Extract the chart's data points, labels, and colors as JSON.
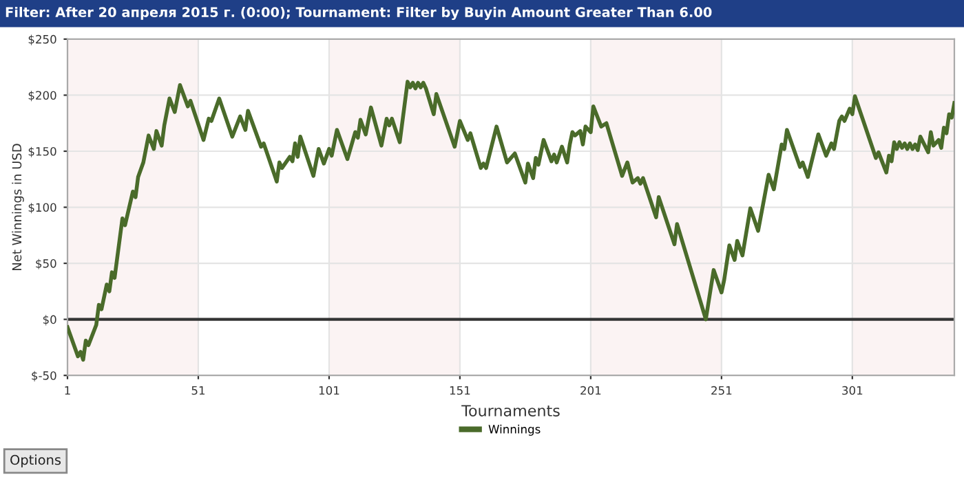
{
  "chart_data": {
    "type": "line",
    "title": "Filter: After 20 апреля 2015 г. (0:00); Tournament: Filter by Buyin Amount Greater Than 6.00",
    "xlabel": "Tournaments",
    "ylabel": "Net Winnings in USD",
    "xlim": [
      1,
      340
    ],
    "xticks": [
      1,
      51,
      101,
      151,
      201,
      251,
      301
    ],
    "ylim": [
      -50,
      250
    ],
    "yticks": [
      {
        "value": -50,
        "label": "$-50"
      },
      {
        "value": 0,
        "label": "$0"
      },
      {
        "value": 50,
        "label": "$50"
      },
      {
        "value": 100,
        "label": "$100"
      },
      {
        "value": 150,
        "label": "$150"
      },
      {
        "value": 200,
        "label": "$200"
      },
      {
        "value": 250,
        "label": "$250"
      }
    ],
    "grid": true,
    "legend": "bottom",
    "marker": "none",
    "line_style": "solid",
    "ref_lines": [
      {
        "axis": "y",
        "value": 0,
        "label": null,
        "color": "#333333"
      }
    ],
    "bands": [
      {
        "axis": "x",
        "from": 1,
        "to": 51,
        "label": null,
        "color": "#fbf3f3"
      },
      {
        "axis": "x",
        "from": 101,
        "to": 151,
        "label": null,
        "color": "#fbf3f3"
      },
      {
        "axis": "x",
        "from": 201,
        "to": 251,
        "label": null,
        "color": "#fbf3f3"
      },
      {
        "axis": "x",
        "from": 301,
        "to": 340,
        "label": null,
        "color": "#fbf3f3"
      }
    ],
    "annotations": [
      "Options"
    ],
    "series": [
      {
        "name": "Winnings",
        "color": "#4a6b2a",
        "x": [
          1,
          5,
          6,
          7,
          8,
          9,
          12,
          13,
          14,
          16,
          17,
          18,
          19,
          22,
          23,
          26,
          27,
          28,
          30,
          32,
          34,
          35,
          37,
          38,
          40,
          42,
          44,
          47,
          48,
          53,
          55,
          56,
          59,
          64,
          67,
          69,
          70,
          75,
          76,
          81,
          82,
          83,
          86,
          87,
          88,
          89,
          90,
          95,
          97,
          99,
          101,
          102,
          104,
          108,
          111,
          112,
          113,
          115,
          117,
          121,
          123,
          124,
          125,
          128,
          131,
          132,
          133,
          134,
          135,
          136,
          137,
          138,
          141,
          142,
          149,
          151,
          154,
          155,
          159,
          160,
          161,
          165,
          169,
          172,
          176,
          177,
          179,
          180,
          181,
          183,
          186,
          187,
          188,
          190,
          192,
          193,
          194,
          195,
          197,
          198,
          199,
          201,
          202,
          205,
          207,
          213,
          215,
          217,
          219,
          220,
          221,
          226,
          227,
          233,
          234,
          245,
          248,
          251,
          252,
          254,
          256,
          257,
          259,
          262,
          265,
          269,
          271,
          274,
          275,
          276,
          281,
          282,
          284,
          288,
          291,
          293,
          294,
          296,
          297,
          298,
          300,
          301,
          302,
          310,
          311,
          314,
          315,
          316,
          317,
          318,
          319,
          320,
          321,
          322,
          323,
          324,
          325,
          326,
          327,
          330,
          331,
          332,
          334,
          335,
          336,
          337,
          338,
          339,
          340
        ],
        "values": [
          -7,
          -33,
          -29,
          -36,
          -19,
          -23,
          -5,
          13,
          9,
          31,
          25,
          42,
          37,
          90,
          84,
          114,
          109,
          127,
          140,
          164,
          152,
          168,
          155,
          173,
          197,
          185,
          209,
          190,
          195,
          160,
          179,
          177,
          197,
          163,
          181,
          169,
          186,
          154,
          157,
          123,
          140,
          135,
          145,
          141,
          157,
          145,
          163,
          128,
          152,
          139,
          152,
          146,
          169,
          143,
          167,
          162,
          178,
          165,
          189,
          155,
          179,
          173,
          179,
          158,
          212,
          207,
          211,
          206,
          211,
          207,
          211,
          206,
          183,
          201,
          154,
          177,
          160,
          166,
          135,
          139,
          135,
          172,
          140,
          148,
          122,
          139,
          126,
          144,
          138,
          160,
          141,
          147,
          140,
          154,
          140,
          156,
          167,
          164,
          168,
          156,
          172,
          167,
          190,
          172,
          175,
          128,
          140,
          122,
          126,
          121,
          126,
          91,
          109,
          67,
          85,
          0,
          44,
          24,
          35,
          66,
          53,
          70,
          57,
          99,
          79,
          129,
          116,
          156,
          152,
          169,
          136,
          140,
          127,
          165,
          146,
          157,
          152,
          177,
          181,
          177,
          188,
          183,
          199,
          144,
          149,
          131,
          146,
          141,
          158,
          152,
          158,
          153,
          157,
          152,
          157,
          152,
          156,
          151,
          163,
          149,
          167,
          155,
          160,
          153,
          171,
          166,
          183,
          180,
          193
        ]
      }
    ]
  }
}
